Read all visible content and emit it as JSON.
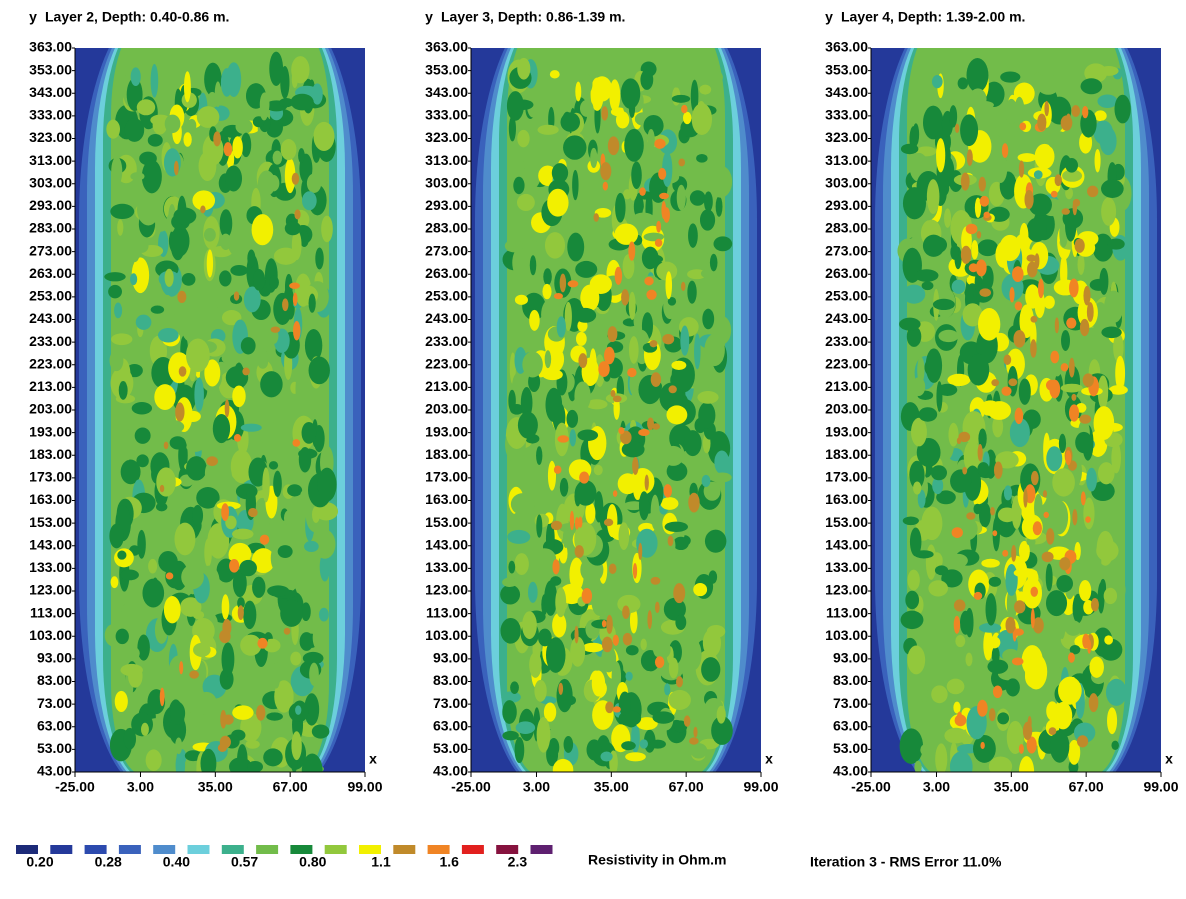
{
  "chart_data": [
    {
      "type": "contour",
      "title": "Layer 2, Depth: 0.40-0.86 m.",
      "y_label": "y",
      "x_label": "x",
      "xlim": [
        -25,
        99
      ],
      "ylim": [
        43,
        363
      ],
      "xticks": [
        {
          "value": -25,
          "label": "-25.00"
        },
        {
          "value": 3,
          "label": "3.00"
        },
        {
          "value": 35,
          "label": "35.00"
        },
        {
          "value": 67,
          "label": "67.00"
        },
        {
          "value": 99,
          "label": "99.00"
        }
      ],
      "yticks": [
        {
          "value": 43,
          "label": "43.00"
        },
        {
          "value": 53,
          "label": "53.00"
        },
        {
          "value": 63,
          "label": "63.00"
        },
        {
          "value": 73,
          "label": "73.00"
        },
        {
          "value": 83,
          "label": "83.00"
        },
        {
          "value": 93,
          "label": "93.00"
        },
        {
          "value": 103,
          "label": "103.00"
        },
        {
          "value": 113,
          "label": "113.00"
        },
        {
          "value": 123,
          "label": "123.00"
        },
        {
          "value": 133,
          "label": "133.00"
        },
        {
          "value": 143,
          "label": "143.00"
        },
        {
          "value": 153,
          "label": "153.00"
        },
        {
          "value": 163,
          "label": "163.00"
        },
        {
          "value": 173,
          "label": "173.00"
        },
        {
          "value": 183,
          "label": "183.00"
        },
        {
          "value": 193,
          "label": "193.00"
        },
        {
          "value": 203,
          "label": "203.00"
        },
        {
          "value": 213,
          "label": "213.00"
        },
        {
          "value": 223,
          "label": "223.00"
        },
        {
          "value": 233,
          "label": "233.00"
        },
        {
          "value": 243,
          "label": "243.00"
        },
        {
          "value": 253,
          "label": "253.00"
        },
        {
          "value": 263,
          "label": "263.00"
        },
        {
          "value": 273,
          "label": "273.00"
        },
        {
          "value": 283,
          "label": "283.00"
        },
        {
          "value": 293,
          "label": "293.00"
        },
        {
          "value": 303,
          "label": "303.00"
        },
        {
          "value": 313,
          "label": "313.00"
        },
        {
          "value": 323,
          "label": "323.00"
        },
        {
          "value": 333,
          "label": "333.00"
        },
        {
          "value": 343,
          "label": "343.00"
        },
        {
          "value": 353,
          "label": "353.00"
        },
        {
          "value": 363,
          "label": "363.00"
        }
      ]
    },
    {
      "type": "contour",
      "title": "Layer 3, Depth: 0.86-1.39 m.",
      "y_label": "y",
      "x_label": "x",
      "xlim": [
        -25,
        99
      ],
      "ylim": [
        43,
        363
      ],
      "xticks": [
        {
          "value": -25,
          "label": "-25.00"
        },
        {
          "value": 3,
          "label": "3.00"
        },
        {
          "value": 35,
          "label": "35.00"
        },
        {
          "value": 67,
          "label": "67.00"
        },
        {
          "value": 99,
          "label": "99.00"
        }
      ],
      "yticks": [
        {
          "value": 43,
          "label": "43.00"
        },
        {
          "value": 53,
          "label": "53.00"
        },
        {
          "value": 63,
          "label": "63.00"
        },
        {
          "value": 73,
          "label": "73.00"
        },
        {
          "value": 83,
          "label": "83.00"
        },
        {
          "value": 93,
          "label": "93.00"
        },
        {
          "value": 103,
          "label": "103.00"
        },
        {
          "value": 113,
          "label": "113.00"
        },
        {
          "value": 123,
          "label": "123.00"
        },
        {
          "value": 133,
          "label": "133.00"
        },
        {
          "value": 143,
          "label": "143.00"
        },
        {
          "value": 153,
          "label": "153.00"
        },
        {
          "value": 163,
          "label": "163.00"
        },
        {
          "value": 173,
          "label": "173.00"
        },
        {
          "value": 183,
          "label": "183.00"
        },
        {
          "value": 193,
          "label": "193.00"
        },
        {
          "value": 203,
          "label": "203.00"
        },
        {
          "value": 213,
          "label": "213.00"
        },
        {
          "value": 223,
          "label": "223.00"
        },
        {
          "value": 233,
          "label": "233.00"
        },
        {
          "value": 243,
          "label": "243.00"
        },
        {
          "value": 253,
          "label": "253.00"
        },
        {
          "value": 263,
          "label": "263.00"
        },
        {
          "value": 273,
          "label": "273.00"
        },
        {
          "value": 283,
          "label": "283.00"
        },
        {
          "value": 293,
          "label": "293.00"
        },
        {
          "value": 303,
          "label": "303.00"
        },
        {
          "value": 313,
          "label": "313.00"
        },
        {
          "value": 323,
          "label": "323.00"
        },
        {
          "value": 333,
          "label": "333.00"
        },
        {
          "value": 343,
          "label": "343.00"
        },
        {
          "value": 353,
          "label": "353.00"
        },
        {
          "value": 363,
          "label": "363.00"
        }
      ]
    },
    {
      "type": "contour",
      "title": "Layer 4, Depth: 1.39-2.00 m.",
      "y_label": "y",
      "x_label": "x",
      "xlim": [
        -25,
        99
      ],
      "ylim": [
        43,
        363
      ],
      "xticks": [
        {
          "value": -25,
          "label": "-25.00"
        },
        {
          "value": 3,
          "label": "3.00"
        },
        {
          "value": 35,
          "label": "35.00"
        },
        {
          "value": 67,
          "label": "67.00"
        },
        {
          "value": 99,
          "label": "99.00"
        }
      ],
      "yticks": [
        {
          "value": 43,
          "label": "43.00"
        },
        {
          "value": 53,
          "label": "53.00"
        },
        {
          "value": 63,
          "label": "63.00"
        },
        {
          "value": 73,
          "label": "73.00"
        },
        {
          "value": 83,
          "label": "83.00"
        },
        {
          "value": 93,
          "label": "93.00"
        },
        {
          "value": 103,
          "label": "103.00"
        },
        {
          "value": 113,
          "label": "113.00"
        },
        {
          "value": 123,
          "label": "123.00"
        },
        {
          "value": 133,
          "label": "133.00"
        },
        {
          "value": 143,
          "label": "143.00"
        },
        {
          "value": 153,
          "label": "153.00"
        },
        {
          "value": 163,
          "label": "163.00"
        },
        {
          "value": 173,
          "label": "173.00"
        },
        {
          "value": 183,
          "label": "183.00"
        },
        {
          "value": 193,
          "label": "193.00"
        },
        {
          "value": 203,
          "label": "203.00"
        },
        {
          "value": 213,
          "label": "213.00"
        },
        {
          "value": 223,
          "label": "223.00"
        },
        {
          "value": 233,
          "label": "233.00"
        },
        {
          "value": 243,
          "label": "243.00"
        },
        {
          "value": 253,
          "label": "253.00"
        },
        {
          "value": 263,
          "label": "263.00"
        },
        {
          "value": 273,
          "label": "273.00"
        },
        {
          "value": 283,
          "label": "283.00"
        },
        {
          "value": 293,
          "label": "293.00"
        },
        {
          "value": 303,
          "label": "303.00"
        },
        {
          "value": 313,
          "label": "313.00"
        },
        {
          "value": 323,
          "label": "323.00"
        },
        {
          "value": 333,
          "label": "333.00"
        },
        {
          "value": 343,
          "label": "343.00"
        },
        {
          "value": 353,
          "label": "353.00"
        },
        {
          "value": 363,
          "label": "363.00"
        }
      ]
    }
  ],
  "legend": {
    "title": "Resistivity in Ohm.m",
    "colors": [
      "#1c2a78",
      "#24399a",
      "#2c4aae",
      "#3a62bc",
      "#4f8ccc",
      "#6ccfdc",
      "#3cb08c",
      "#72bc4a",
      "#17893a",
      "#92c83c",
      "#f2f000",
      "#c08a2a",
      "#f08424",
      "#e2201e",
      "#86123e",
      "#5e2070"
    ],
    "levels": [
      {
        "value": 0.2,
        "label": "0.20"
      },
      0.28,
      {
        "value": 0.4,
        "label": "0.40"
      },
      0.57,
      {
        "value": 0.8,
        "label": "0.80"
      },
      1.1,
      1.6,
      2.3
    ]
  },
  "footer": "Iteration 3 - RMS Error 11.0%"
}
